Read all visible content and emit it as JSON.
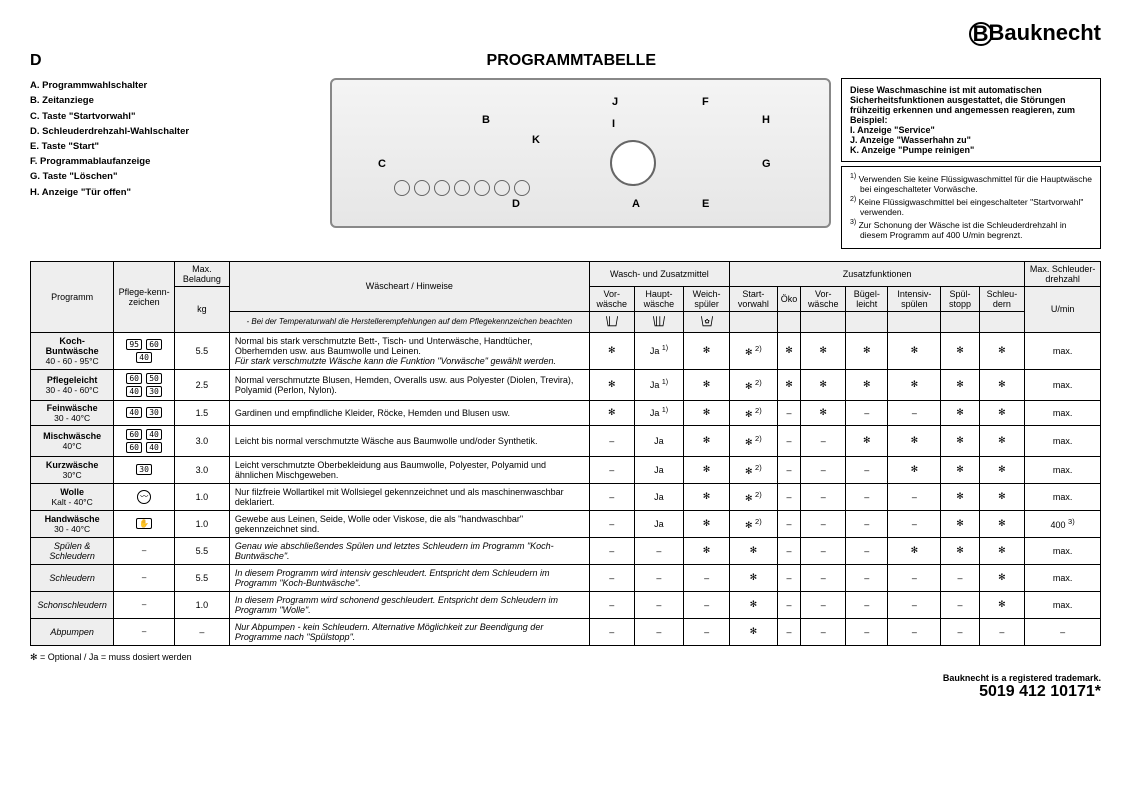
{
  "brand": "Bauknecht",
  "section_letter": "D",
  "title": "PROGRAMMTABELLE",
  "legend_left": [
    {
      "k": "A.",
      "v": "Programmwahlschalter"
    },
    {
      "k": "B.",
      "v": "Zeitanziege"
    },
    {
      "k": "C.",
      "v": "Taste \"Startvorwahl\""
    },
    {
      "k": "D.",
      "v": "Schleuderdrehzahl-Wahlschalter"
    },
    {
      "k": "E.",
      "v": "Taste \"Start\""
    },
    {
      "k": "F.",
      "v": "Programmablaufanzeige"
    },
    {
      "k": "G.",
      "v": "Taste \"Löschen\""
    },
    {
      "k": "H.",
      "v": "Anzeige \"Tür offen\""
    }
  ],
  "info_box": {
    "lines": [
      "Diese Waschmaschine ist mit automatischen Sicherheitsfunktionen ausgestattet, die Störungen frühzeitig erkennen und angemessen reagieren, zum Beispiel:"
    ],
    "legend": [
      {
        "k": "I.",
        "v": "Anzeige \"Service\""
      },
      {
        "k": "J.",
        "v": "Anzeige \"Wasserhahn zu\""
      },
      {
        "k": "K.",
        "v": "Anzeige \"Pumpe reinigen\""
      }
    ]
  },
  "footnotes": [
    {
      "n": "1)",
      "t": "Verwenden Sie keine Flüssigwaschmittel für die Hauptwäsche bei eingeschalteter Vorwäsche."
    },
    {
      "n": "2)",
      "t": "Keine Flüssigwaschmittel bei eingeschalteter \"Startvorwahl\" verwenden."
    },
    {
      "n": "3)",
      "t": "Zur Schonung der Wäsche ist die Schleuderdrehzahl in diesem Programm auf 400 U/min begrenzt."
    }
  ],
  "headers": {
    "programm": "Programm",
    "pflege": "Pflege-kenn-zeichen",
    "maxbel": "Max. Beladung",
    "kg": "kg",
    "wascheart": "Wäscheart / Hinweise",
    "wascheart_sub": "- Bei der Temperaturwahl die Herstellerempfehlungen auf dem Pflegekennzeichen beachten",
    "wasch_group": "Wasch- und Zusatzmittel",
    "vorw": "Vor-wäsche",
    "haupt": "Haupt-wäsche",
    "weich": "Weich-spüler",
    "zusatz_group": "Zusatzfunktionen",
    "start": "Start-vorwahl",
    "oko": "Öko",
    "vorw2": "Vor-wäsche",
    "bugel": "Bügel-leicht",
    "intens": "Intensiv-spülen",
    "spul": "Spül-stopp",
    "schleu": "Schleu-dern",
    "maxdreh": "Max. Schleuder-drehzahl",
    "umin": "U/min"
  },
  "rows": [
    {
      "name": "Koch-Buntwäsche",
      "temp": "40 - 60 - 95°C",
      "care": [
        "95",
        "60",
        "40"
      ],
      "kg": "5.5",
      "hint": "Normal bis stark verschmutzte Bett-, Tisch- und Unterwäsche, Handtücher, Oberhemden usw. aus Baumwolle und Leinen.\nFür stark verschmutzte Wäsche kann die Funktion \"Vorwäsche\" gewählt werden.",
      "vor": "opt",
      "haupt": "Ja 1)",
      "weich": "opt",
      "start": "opt 2)",
      "oko": "opt",
      "vorw2": "opt",
      "bugel": "opt",
      "intens": "opt",
      "spul": "opt",
      "schleu": "opt",
      "dreh": "max.",
      "ital": false
    },
    {
      "name": "Pflegeleicht",
      "temp": "30 - 40 - 60°C",
      "care": [
        "60",
        "50",
        "40",
        "30"
      ],
      "kg": "2.5",
      "hint": "Normal verschmutzte Blusen, Hemden, Overalls usw. aus Polyester (Diolen, Trevira), Polyamid (Perlon, Nylon).",
      "vor": "opt",
      "haupt": "Ja 1)",
      "weich": "opt",
      "start": "opt 2)",
      "oko": "opt",
      "vorw2": "opt",
      "bugel": "opt",
      "intens": "opt",
      "spul": "opt",
      "schleu": "opt",
      "dreh": "max.",
      "ital": false
    },
    {
      "name": "Feinwäsche",
      "temp": "30 - 40°C",
      "care": [
        "40",
        "30"
      ],
      "kg": "1.5",
      "hint": "Gardinen und empfindliche Kleider, Röcke, Hemden und Blusen usw.",
      "vor": "opt",
      "haupt": "Ja 1)",
      "weich": "opt",
      "start": "opt 2)",
      "oko": "–",
      "vorw2": "opt",
      "bugel": "–",
      "intens": "–",
      "spul": "opt",
      "schleu": "opt",
      "dreh": "max.",
      "ital": false
    },
    {
      "name": "Mischwäsche",
      "temp": "40°C",
      "care": [
        "60",
        "40",
        "60",
        "40"
      ],
      "kg": "3.0",
      "hint": "Leicht bis normal verschmutzte Wäsche aus Baumwolle und/oder Synthetik.",
      "vor": "–",
      "haupt": "Ja",
      "weich": "opt",
      "start": "opt 2)",
      "oko": "–",
      "vorw2": "–",
      "bugel": "opt",
      "intens": "opt",
      "spul": "opt",
      "schleu": "opt",
      "dreh": "max.",
      "ital": false
    },
    {
      "name": "Kurzwäsche",
      "temp": "30°C",
      "care": [
        "30"
      ],
      "kg": "3.0",
      "hint": "Leicht verschmutzte Oberbekleidung aus Baumwolle, Polyester, Polyamid und ähnlichen Mischgeweben.",
      "vor": "–",
      "haupt": "Ja",
      "weich": "opt",
      "start": "opt 2)",
      "oko": "–",
      "vorw2": "–",
      "bugel": "–",
      "intens": "opt",
      "spul": "opt",
      "schleu": "opt",
      "dreh": "max.",
      "ital": false
    },
    {
      "name": "Wolle",
      "temp": "Kalt - 40°C",
      "care": [
        "wool"
      ],
      "kg": "1.0",
      "hint": "Nur filzfreie Wollartikel mit Wollsiegel gekennzeichnet und als maschinenwaschbar deklariert.",
      "vor": "–",
      "haupt": "Ja",
      "weich": "opt",
      "start": "opt 2)",
      "oko": "–",
      "vorw2": "–",
      "bugel": "–",
      "intens": "–",
      "spul": "opt",
      "schleu": "opt",
      "dreh": "max.",
      "ital": false
    },
    {
      "name": "Handwäsche",
      "temp": "30 - 40°C",
      "care": [
        "hand"
      ],
      "kg": "1.0",
      "hint": "Gewebe aus Leinen, Seide, Wolle oder Viskose, die als \"handwaschbar\" gekennzeichnet sind.",
      "vor": "–",
      "haupt": "Ja",
      "weich": "opt",
      "start": "opt 2)",
      "oko": "–",
      "vorw2": "–",
      "bugel": "–",
      "intens": "–",
      "spul": "opt",
      "schleu": "opt",
      "dreh": "400 3)",
      "ital": false
    },
    {
      "name": "Spülen & Schleudern",
      "temp": "",
      "care": [
        "–"
      ],
      "kg": "5.5",
      "hint": "Genau wie abschließendes Spülen und letztes Schleudern im Programm \"Koch-Buntwäsche\".",
      "vor": "–",
      "haupt": "–",
      "weich": "opt",
      "start": "opt",
      "oko": "–",
      "vorw2": "–",
      "bugel": "–",
      "intens": "opt",
      "spul": "opt",
      "schleu": "opt",
      "dreh": "max.",
      "ital": true
    },
    {
      "name": "Schleudern",
      "temp": "",
      "care": [
        "–"
      ],
      "kg": "5.5",
      "hint": "In diesem Programm wird intensiv geschleudert. Entspricht dem Schleudern im Programm \"Koch-Buntwäsche\".",
      "vor": "–",
      "haupt": "–",
      "weich": "–",
      "start": "opt",
      "oko": "–",
      "vorw2": "–",
      "bugel": "–",
      "intens": "–",
      "spul": "–",
      "schleu": "opt",
      "dreh": "max.",
      "ital": true
    },
    {
      "name": "Schonschleudern",
      "temp": "",
      "care": [
        "–"
      ],
      "kg": "1.0",
      "hint": "In diesem Programm wird schonend geschleudert. Entspricht dem Schleudern im Programm \"Wolle\".",
      "vor": "–",
      "haupt": "–",
      "weich": "–",
      "start": "opt",
      "oko": "–",
      "vorw2": "–",
      "bugel": "–",
      "intens": "–",
      "spul": "–",
      "schleu": "opt",
      "dreh": "max.",
      "ital": true
    },
    {
      "name": "Abpumpen",
      "temp": "",
      "care": [
        "–"
      ],
      "kg": "–",
      "hint": "Nur Abpumpen - kein Schleudern. Alternative Möglichkeit zur Beendigung der Programme nach \"Spülstopp\".",
      "vor": "–",
      "haupt": "–",
      "weich": "–",
      "start": "opt",
      "oko": "–",
      "vorw2": "–",
      "bugel": "–",
      "intens": "–",
      "spul": "–",
      "schleu": "–",
      "dreh": "–",
      "ital": true
    }
  ],
  "footer_left": "✻ = Optional  /  Ja = muss dosiert werden",
  "footer_tm": "Bauknecht is a registered trademark.",
  "footer_code": "5019 412 10171*"
}
